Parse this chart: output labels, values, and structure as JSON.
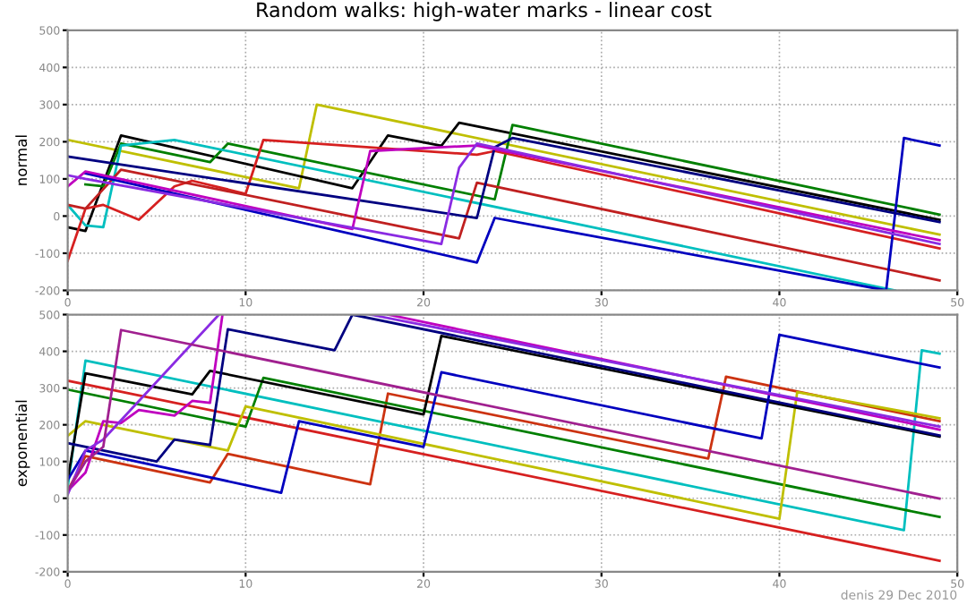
{
  "chart_data": [
    {
      "type": "line",
      "title": "Random walks: high-water marks - linear cost",
      "ylabel": "normal",
      "xlim": [
        0,
        50
      ],
      "xticks": [
        0,
        10,
        20,
        30,
        40,
        50
      ],
      "ylim": [
        -200,
        500
      ],
      "yticks": [
        -200,
        -100,
        0,
        100,
        200,
        300,
        400,
        500
      ],
      "grid": true,
      "series": [
        {
          "color": "#bfbf00",
          "x": [
            0,
            13,
            14,
            49
          ],
          "values": [
            205,
            75,
            300,
            -50
          ]
        },
        {
          "color": "#000000",
          "x": [
            0,
            1,
            3,
            16,
            18,
            21,
            22,
            49
          ],
          "values": [
            -30,
            -40,
            217,
            75,
            217,
            189,
            251,
            -10
          ]
        },
        {
          "color": "#007f00",
          "x": [
            1,
            2,
            3,
            8,
            9,
            24,
            25,
            49
          ],
          "values": [
            85,
            80,
            195,
            145,
            195,
            45,
            245,
            4
          ]
        },
        {
          "color": "#00bfbf",
          "x": [
            0,
            1,
            2,
            3,
            6,
            46.5
          ],
          "values": [
            30,
            -25,
            -30,
            190,
            205,
            -200
          ]
        },
        {
          "color": "#d62020",
          "x": [
            0,
            1,
            2,
            4,
            6,
            7,
            10,
            11,
            23,
            24,
            49
          ],
          "values": [
            -120,
            20,
            30,
            -10,
            80,
            95,
            60,
            205,
            165,
            175,
            -87
          ]
        },
        {
          "color": "#c02020",
          "x": [
            0,
            1,
            3,
            22,
            23,
            49
          ],
          "values": [
            30,
            20,
            125,
            -60,
            90,
            -173
          ]
        },
        {
          "color": "#0000bf",
          "x": [
            1,
            23,
            24,
            46,
            47,
            49
          ],
          "values": [
            115,
            -125,
            -5,
            -200,
            210,
            190
          ]
        },
        {
          "color": "#000080",
          "x": [
            0,
            23,
            24,
            25,
            49
          ],
          "values": [
            160,
            -5,
            185,
            210,
            -16
          ]
        },
        {
          "color": "#bf00bf",
          "x": [
            0,
            1,
            16,
            17,
            23,
            49
          ],
          "values": [
            80,
            120,
            -35,
            175,
            190,
            -65
          ]
        },
        {
          "color": "#8a2be2",
          "x": [
            0,
            1,
            21,
            22,
            23,
            49
          ],
          "values": [
            110,
            100,
            -75,
            130,
            195,
            -75
          ]
        }
      ]
    },
    {
      "type": "line",
      "ylabel": "exponential",
      "xlim": [
        0,
        50
      ],
      "xticks": [
        0,
        10,
        20,
        30,
        40,
        50
      ],
      "ylim": [
        -200,
        500
      ],
      "yticks": [
        -200,
        -100,
        0,
        100,
        200,
        300,
        400,
        500
      ],
      "grid": true,
      "annotations": [
        "denis 29 Dec 2010"
      ],
      "series": [
        {
          "color": "#00bfbf",
          "x": [
            0,
            1,
            47,
            48,
            49
          ],
          "values": [
            30,
            375,
            -87,
            403,
            394
          ]
        },
        {
          "color": "#d62020",
          "x": [
            0,
            49
          ],
          "values": [
            320,
            -170
          ]
        },
        {
          "color": "#cc3311",
          "x": [
            0,
            1,
            8,
            9,
            17,
            18,
            36,
            37,
            49
          ],
          "values": [
            20,
            115,
            43,
            121,
            38,
            285,
            108,
            331,
            210
          ]
        },
        {
          "color": "#007f00",
          "x": [
            0,
            10,
            11,
            49
          ],
          "values": [
            296,
            195,
            328,
            -51
          ]
        },
        {
          "color": "#bfbf00",
          "x": [
            0,
            1,
            9,
            10,
            40,
            41,
            49
          ],
          "values": [
            170,
            210,
            130,
            250,
            -56,
            289,
            218
          ]
        },
        {
          "color": "#000000",
          "x": [
            0,
            1,
            7,
            8,
            20,
            21,
            49
          ],
          "values": [
            50,
            340,
            283,
            347,
            228,
            442,
            168
          ]
        },
        {
          "color": "#0000bf",
          "x": [
            0,
            1,
            12,
            13,
            20,
            21,
            39,
            40,
            49
          ],
          "values": [
            50,
            130,
            15,
            210,
            140,
            343,
            163,
            445,
            356
          ]
        },
        {
          "color": "#000080",
          "x": [
            0,
            5,
            6,
            8,
            9,
            15,
            16,
            49
          ],
          "values": [
            150,
            100,
            160,
            145,
            460,
            403,
            500,
            171
          ]
        },
        {
          "color": "#bf00bf",
          "x": [
            0,
            1,
            2,
            3,
            4,
            6,
            7,
            8,
            8.7,
            9,
            18,
            49
          ],
          "values": [
            20,
            70,
            210,
            205,
            240,
            225,
            265,
            260,
            500,
            null,
            500,
            187
          ]
        },
        {
          "color": "#8a2be2",
          "x": [
            0,
            1,
            2,
            8.5,
            9,
            17,
            49
          ],
          "values": [
            10,
            130,
            160,
            500,
            null,
            500,
            195
          ]
        },
        {
          "color": "#a0208f",
          "x": [
            0,
            1,
            2,
            3,
            49
          ],
          "values": [
            20,
            100,
            140,
            458,
            -1
          ]
        }
      ]
    }
  ]
}
